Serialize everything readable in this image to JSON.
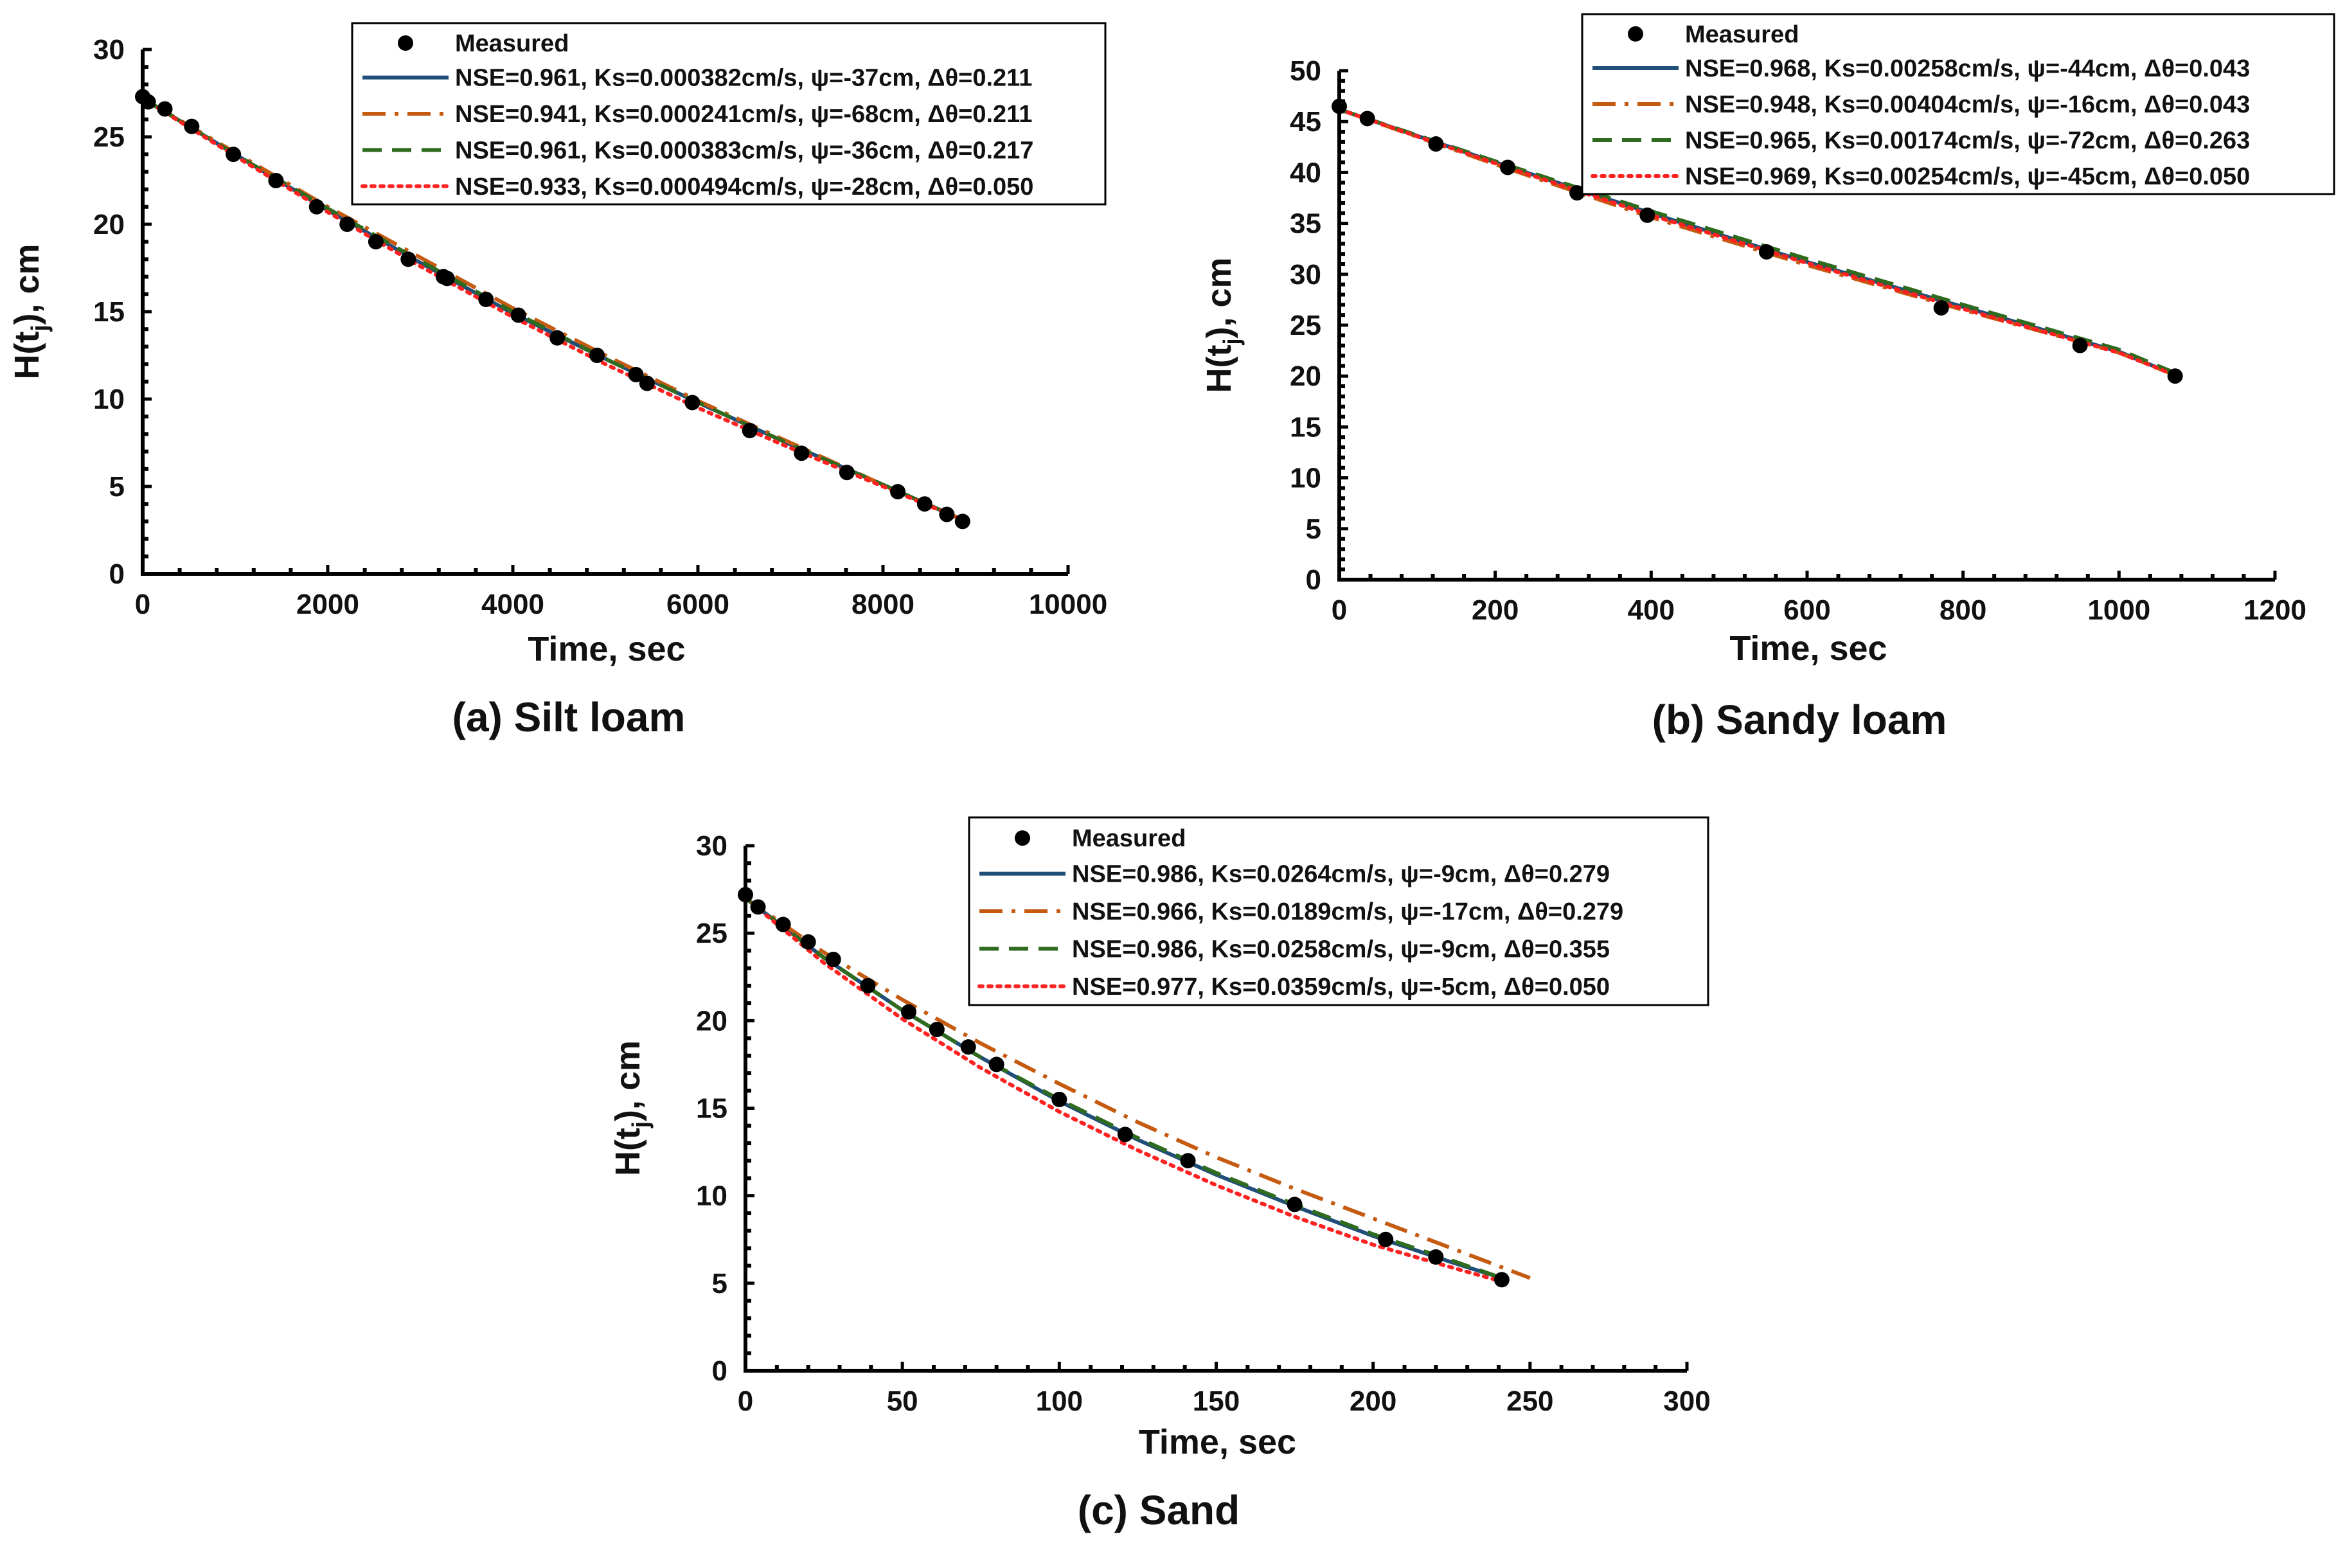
{
  "colors": {
    "measured": "#000000",
    "series1": "#1f4e79",
    "series2": "#c55a11",
    "series3": "#2e6b1e",
    "series4": "#ff2020",
    "axis": "#000000"
  },
  "chart_data": [
    {
      "type": "line",
      "caption": "(a) Silt loam",
      "xlabel": "Time, sec",
      "ylabel_main": "H(t",
      "ylabel_sub": "j",
      "ylabel_tail": "), cm",
      "xlim": [
        0,
        10000
      ],
      "ylim": [
        0,
        30
      ],
      "xticks": [
        "0",
        "2000",
        "4000",
        "6000",
        "8000",
        "10000"
      ],
      "yticks": [
        "0",
        "5",
        "10",
        "15",
        "20",
        "25",
        "30"
      ],
      "measured_label": "Measured",
      "measured": {
        "x": [
          0,
          60,
          240,
          530,
          980,
          1440,
          1880,
          2210,
          2520,
          2870,
          3250,
          3290,
          3710,
          4060,
          4480,
          4910,
          5330,
          5450,
          5940,
          6560,
          7120,
          7610,
          8160,
          8450,
          8690,
          8860
        ],
        "y": [
          27.3,
          27.0,
          26.6,
          25.6,
          24.0,
          22.5,
          21.0,
          20.0,
          19.0,
          18.0,
          17.0,
          16.9,
          15.7,
          14.8,
          13.5,
          12.5,
          11.4,
          10.9,
          9.8,
          8.2,
          6.9,
          5.8,
          4.7,
          4.0,
          3.4,
          3.0
        ]
      },
      "series": [
        {
          "name": "NSE=0.961, Ks=0.000382cm/s, ψ=-37cm, Δθ=0.211",
          "style": "solid",
          "x": [
            0,
            1000,
            2000,
            3000,
            4000,
            5000,
            6000,
            7000,
            8000,
            8900
          ],
          "y": [
            27.2,
            24.0,
            20.8,
            17.8,
            14.9,
            12.3,
            9.8,
            7.4,
            5.1,
            3.0
          ]
        },
        {
          "name": "NSE=0.941, Ks=0.000241cm/s, ψ=-68cm, Δθ=0.211",
          "style": "dashdot",
          "x": [
            0,
            1000,
            2000,
            3000,
            4000,
            5000,
            6000,
            7000,
            8000,
            8900
          ],
          "y": [
            27.2,
            24.1,
            21.0,
            18.1,
            15.2,
            12.5,
            9.9,
            7.5,
            5.1,
            3.0
          ]
        },
        {
          "name": "NSE=0.961, Ks=0.000383cm/s, ψ=-36cm, Δθ=0.217",
          "style": "dashed",
          "x": [
            0,
            1000,
            2000,
            3000,
            4000,
            5000,
            6000,
            7000,
            8000,
            8900
          ],
          "y": [
            27.2,
            24.0,
            20.9,
            17.9,
            15.0,
            12.3,
            9.8,
            7.4,
            5.1,
            3.0
          ]
        },
        {
          "name": "NSE=0.933, Ks=0.000494cm/s, ψ=-28cm, Δθ=0.050",
          "style": "dotted",
          "x": [
            0,
            1000,
            2000,
            3000,
            4000,
            5000,
            6000,
            7000,
            8000,
            8900
          ],
          "y": [
            27.2,
            23.9,
            20.7,
            17.6,
            14.7,
            12.0,
            9.5,
            7.2,
            5.0,
            3.0
          ]
        }
      ]
    },
    {
      "type": "line",
      "caption": "(b) Sandy loam",
      "xlabel": "Time, sec",
      "ylabel_main": "H(t",
      "ylabel_sub": "j",
      "ylabel_tail": "), cm",
      "xlim": [
        0,
        1200
      ],
      "ylim": [
        0,
        50
      ],
      "xticks": [
        "0",
        "200",
        "400",
        "600",
        "800",
        "1000",
        "1200"
      ],
      "yticks": [
        "0",
        "5",
        "10",
        "15",
        "20",
        "25",
        "30",
        "35",
        "40",
        "45",
        "50"
      ],
      "measured_label": "Measured",
      "measured": {
        "x": [
          0,
          36,
          124,
          216,
          305,
          395,
          548,
          772,
          950,
          1072
        ],
        "y": [
          46.5,
          45.3,
          42.8,
          40.5,
          38.0,
          35.8,
          32.2,
          26.7,
          23.0,
          20.0
        ]
      },
      "series": [
        {
          "name": "NSE=0.968, Ks=0.00258cm/s, ψ=-44cm, Δθ=0.043",
          "style": "solid",
          "x": [
            0,
            200,
            400,
            600,
            800,
            1000,
            1075
          ],
          "y": [
            46.2,
            41.0,
            36.0,
            31.2,
            26.8,
            22.4,
            20.0
          ]
        },
        {
          "name": "NSE=0.948, Ks=0.00404cm/s, ψ=-16cm, Δθ=0.043",
          "style": "dashdot",
          "x": [
            0,
            200,
            400,
            600,
            800,
            1000,
            1075
          ],
          "y": [
            46.2,
            40.8,
            35.6,
            30.9,
            26.5,
            22.3,
            20.0
          ]
        },
        {
          "name": "NSE=0.965, Ks=0.00174cm/s, ψ=-72cm, Δθ=0.263",
          "style": "dashed",
          "x": [
            0,
            200,
            400,
            600,
            800,
            1000,
            1075
          ],
          "y": [
            46.2,
            41.1,
            36.2,
            31.5,
            27.0,
            22.6,
            20.2
          ]
        },
        {
          "name": "NSE=0.969, Ks=0.00254cm/s, ψ=-45cm, Δθ=0.050",
          "style": "dotted",
          "x": [
            0,
            200,
            400,
            600,
            800,
            1000,
            1075
          ],
          "y": [
            46.2,
            40.9,
            35.8,
            31.1,
            26.6,
            22.3,
            20.0
          ]
        }
      ]
    },
    {
      "type": "line",
      "caption": "(c) Sand",
      "xlabel": "Time, sec",
      "ylabel_main": "H(t",
      "ylabel_sub": "j",
      "ylabel_tail": "), cm",
      "xlim": [
        0,
        300
      ],
      "ylim": [
        0,
        30
      ],
      "xticks": [
        "0",
        "50",
        "100",
        "150",
        "200",
        "250",
        "300"
      ],
      "yticks": [
        "0",
        "5",
        "10",
        "15",
        "20",
        "25",
        "30"
      ],
      "measured_label": "Measured",
      "measured": {
        "x": [
          0,
          4,
          12,
          20,
          28,
          39,
          52,
          61,
          71,
          80,
          100,
          121,
          141,
          175,
          204,
          220,
          241
        ],
        "y": [
          27.2,
          26.5,
          25.5,
          24.5,
          23.5,
          22.0,
          20.5,
          19.5,
          18.5,
          17.5,
          15.5,
          13.5,
          12.0,
          9.5,
          7.5,
          6.5,
          5.2
        ]
      },
      "series": [
        {
          "name": "NSE=0.986, Ks=0.0264cm/s, ψ=-9cm, Δθ=0.279",
          "style": "solid",
          "x": [
            0,
            25,
            50,
            75,
            100,
            125,
            150,
            175,
            200,
            225,
            241
          ],
          "y": [
            27.0,
            23.6,
            20.6,
            17.9,
            15.4,
            13.2,
            11.2,
            9.4,
            7.7,
            6.2,
            5.3
          ]
        },
        {
          "name": "NSE=0.966, Ks=0.0189cm/s, ψ=-17cm, Δθ=0.279",
          "style": "dashdot",
          "x": [
            0,
            25,
            50,
            75,
            100,
            125,
            150,
            175,
            200,
            225,
            250
          ],
          "y": [
            27.0,
            23.9,
            21.2,
            18.7,
            16.4,
            14.2,
            12.2,
            10.4,
            8.7,
            7.0,
            5.3
          ]
        },
        {
          "name": "NSE=0.986, Ks=0.0258cm/s, ψ=-9cm, Δθ=0.355",
          "style": "dashed",
          "x": [
            0,
            25,
            50,
            75,
            100,
            125,
            150,
            175,
            200,
            225,
            241
          ],
          "y": [
            27.0,
            23.6,
            20.6,
            17.9,
            15.5,
            13.3,
            11.3,
            9.5,
            7.8,
            6.3,
            5.3
          ]
        },
        {
          "name": "NSE=0.977, Ks=0.0359cm/s, ψ=-5cm, Δθ=0.050",
          "style": "dotted",
          "x": [
            0,
            25,
            50,
            75,
            100,
            125,
            150,
            175,
            200,
            225,
            241
          ],
          "y": [
            27.0,
            23.3,
            20.1,
            17.3,
            14.8,
            12.6,
            10.6,
            8.8,
            7.2,
            5.9,
            5.1
          ]
        }
      ]
    }
  ]
}
